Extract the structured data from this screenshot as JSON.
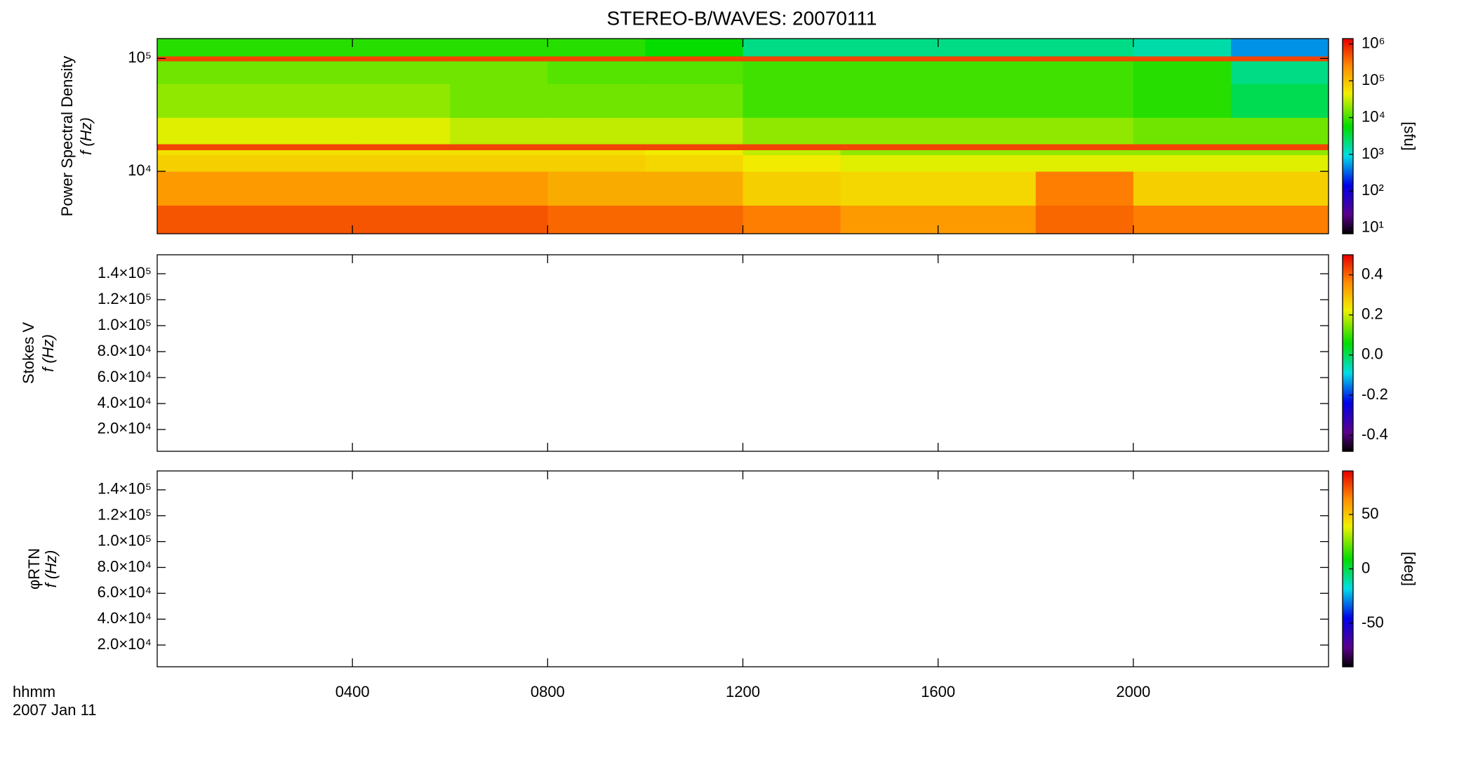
{
  "chart_data": [
    {
      "type": "heatmap",
      "title": "STEREO-B/WAVES: 20070111",
      "ylabel": [
        "Power Spectral Density",
        "f (Hz)"
      ],
      "log_y": true,
      "ylim": [
        2800,
        150000
      ],
      "yticks": [
        {
          "value": 10000,
          "label": "10⁴"
        },
        {
          "value": 100000,
          "label": "10⁵"
        }
      ],
      "xlim": [
        0,
        24
      ],
      "colormap": "rainbow",
      "zlog": true,
      "zlim": [
        7,
        1400000
      ],
      "zticks": [
        {
          "value": 10,
          "label": "10¹"
        },
        {
          "value": 100,
          "label": "10²"
        },
        {
          "value": 1000,
          "label": "10³"
        },
        {
          "value": 10000,
          "label": "10⁴"
        },
        {
          "value": 100000,
          "label": "10⁵"
        },
        {
          "value": 1000000,
          "label": "10⁶"
        }
      ],
      "zlabel": "[sfu]",
      "xbins": [
        0,
        2,
        4,
        6,
        8,
        10,
        12,
        14,
        16,
        18,
        20,
        22,
        24
      ],
      "ybins": [
        2800,
        5000,
        10000,
        14000,
        15500,
        17500,
        30000,
        60000,
        95000,
        105000,
        150000
      ],
      "z": [
        [
          500000,
          500000,
          500000,
          500000,
          400000,
          400000,
          300000,
          200000,
          200000,
          400000,
          300000,
          300000
        ],
        [
          200000,
          200000,
          200000,
          200000,
          150000,
          150000,
          80000,
          70000,
          70000,
          300000,
          80000,
          80000
        ],
        [
          80000,
          80000,
          80000,
          80000,
          80000,
          70000,
          50000,
          40000,
          40000,
          40000,
          40000,
          40000
        ],
        [
          60000,
          60000,
          60000,
          60000,
          60000,
          50000,
          30000,
          20000,
          20000,
          20000,
          20000,
          20000
        ],
        [
          600000,
          600000,
          600000,
          600000,
          600000,
          600000,
          600000,
          600000,
          600000,
          600000,
          600000,
          600000
        ],
        [
          40000,
          40000,
          40000,
          30000,
          30000,
          30000,
          20000,
          20000,
          20000,
          20000,
          15000,
          15000
        ],
        [
          20000,
          20000,
          20000,
          15000,
          15000,
          15000,
          10000,
          10000,
          10000,
          10000,
          8000,
          3000
        ],
        [
          15000,
          15000,
          15000,
          15000,
          12000,
          12000,
          10000,
          10000,
          10000,
          10000,
          8000,
          2000
        ],
        [
          600000,
          600000,
          600000,
          600000,
          600000,
          600000,
          600000,
          600000,
          600000,
          600000,
          600000,
          600000
        ],
        [
          8000,
          8000,
          8000,
          8000,
          8000,
          6000,
          2000,
          2000,
          2000,
          2000,
          1500,
          500
        ]
      ]
    },
    {
      "type": "heatmap",
      "ylabel": [
        "Stokes V",
        "f (Hz)"
      ],
      "log_y": false,
      "ylim": [
        3200,
        154600
      ],
      "yticks": [
        {
          "value": 20000,
          "label": "2.0×10⁴"
        },
        {
          "value": 40000,
          "label": "4.0×10⁴"
        },
        {
          "value": 60000,
          "label": "6.0×10⁴"
        },
        {
          "value": 80000,
          "label": "8.0×10⁴"
        },
        {
          "value": 100000,
          "label": "1.0×10⁵"
        },
        {
          "value": 120000,
          "label": "1.2×10⁵"
        },
        {
          "value": 140000,
          "label": "1.4×10⁵"
        }
      ],
      "xlim": [
        0,
        24
      ],
      "colormap": "rainbow",
      "zlog": false,
      "zlim": [
        -0.48,
        0.5
      ],
      "zticks": [
        -0.4,
        -0.2,
        {
          "value": 0,
          "label": "0.0"
        },
        0.2,
        0.4
      ]
    },
    {
      "type": "heatmap",
      "ylabel": [
        "φRTN",
        "f (Hz)"
      ],
      "log_y": false,
      "ylim": [
        3200,
        154600
      ],
      "yticks": [
        {
          "value": 20000,
          "label": "2.0×10⁴"
        },
        {
          "value": 40000,
          "label": "4.0×10⁴"
        },
        {
          "value": 60000,
          "label": "6.0×10⁴"
        },
        {
          "value": 80000,
          "label": "8.0×10⁴"
        },
        {
          "value": 100000,
          "label": "1.0×10⁵"
        },
        {
          "value": 120000,
          "label": "1.2×10⁵"
        },
        {
          "value": 140000,
          "label": "1.4×10⁵"
        }
      ],
      "xlim": [
        0,
        24
      ],
      "xticks": [
        {
          "value": 4,
          "label": "0400"
        },
        {
          "value": 8,
          "label": "0800"
        },
        {
          "value": 12,
          "label": "1200"
        },
        {
          "value": 16,
          "label": "1600"
        },
        {
          "value": 20,
          "label": "2000"
        }
      ],
      "xlabel": [
        "hhmm",
        "2007 Jan 11"
      ],
      "colormap": "rainbow",
      "zlog": false,
      "zlim": [
        -90,
        90
      ],
      "zticks": [
        -50,
        0,
        50
      ],
      "zlabel": "[deg]"
    }
  ]
}
